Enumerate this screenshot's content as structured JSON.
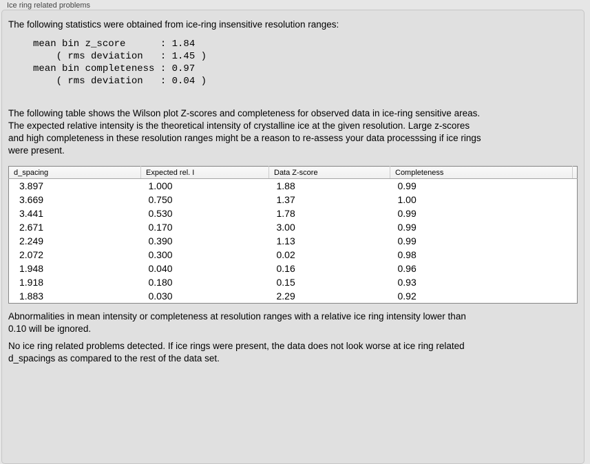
{
  "panel": {
    "title": "Ice ring related problems"
  },
  "intro": "The following statistics were obtained from ice-ring insensitive resolution ranges:",
  "stats_block": "mean bin z_score      : 1.84\n    ( rms deviation   : 1.45 )\nmean bin completeness : 0.97\n    ( rms deviation   : 0.04 )",
  "description": "The following table shows the Wilson plot Z-scores and completeness for observed data in ice-ring sensitive areas.\nThe expected relative intensity is the theoretical intensity of crystalline ice at the given resolution. Large z-scores\nand high completeness in these resolution ranges might be a reason to re-assess your data processsing if ice rings\nwere present.",
  "table": {
    "columns": [
      "d_spacing",
      "Expected rel. I",
      "Data Z-score",
      "Completeness"
    ],
    "rows": [
      [
        "3.897",
        "1.000",
        "1.88",
        "0.99"
      ],
      [
        "3.669",
        "0.750",
        "1.37",
        "1.00"
      ],
      [
        "3.441",
        "0.530",
        "1.78",
        "0.99"
      ],
      [
        "2.671",
        "0.170",
        "3.00",
        "0.99"
      ],
      [
        "2.249",
        "0.390",
        "1.13",
        "0.99"
      ],
      [
        "2.072",
        "0.300",
        "0.02",
        "0.98"
      ],
      [
        "1.948",
        "0.040",
        "0.16",
        "0.96"
      ],
      [
        "1.918",
        "0.180",
        "0.15",
        "0.93"
      ],
      [
        "1.883",
        "0.030",
        "2.29",
        "0.92"
      ]
    ]
  },
  "note_ignore": "Abnormalities in mean intensity or completeness at resolution ranges with a relative ice ring intensity lower than\n0.10 will be ignored.",
  "conclusion": "No ice ring related problems detected. If ice rings were present, the data does not look worse at ice ring related\nd_spacings as compared to the rest of the data set."
}
